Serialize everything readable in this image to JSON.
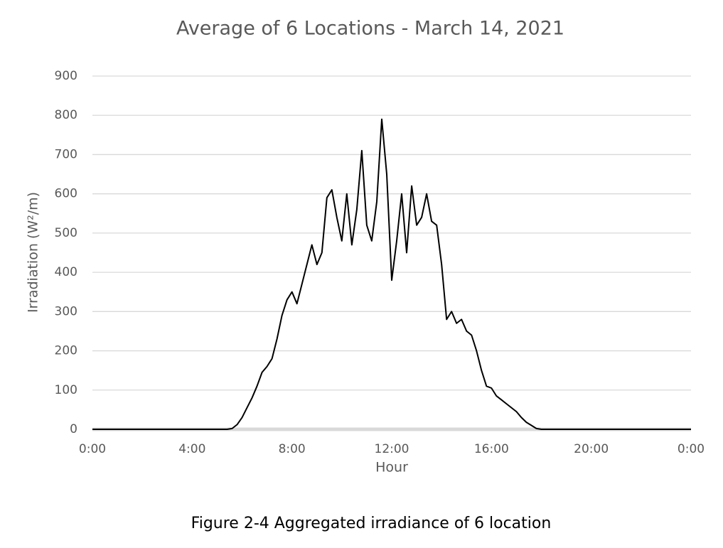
{
  "chart_data": {
    "type": "line",
    "title": "Average of 6 Locations - March 14, 2021",
    "x_label": "Hour",
    "y_label": "Irradiation (W²/m)",
    "caption": "Figure 2-4 Aggregated irradiance of 6 location",
    "x": [
      0,
      5.4,
      5.6,
      5.8,
      6.0,
      6.2,
      6.4,
      6.6,
      6.8,
      7.0,
      7.2,
      7.4,
      7.6,
      7.8,
      8.0,
      8.2,
      8.4,
      8.6,
      8.8,
      9.0,
      9.2,
      9.4,
      9.6,
      9.8,
      10.0,
      10.2,
      10.4,
      10.6,
      10.8,
      11.0,
      11.2,
      11.4,
      11.6,
      11.8,
      12.0,
      12.2,
      12.4,
      12.6,
      12.8,
      13.0,
      13.2,
      13.4,
      13.6,
      13.8,
      14.0,
      14.2,
      14.4,
      14.6,
      14.8,
      15.0,
      15.2,
      15.4,
      15.6,
      15.8,
      16.0,
      16.2,
      16.4,
      16.6,
      16.8,
      17.0,
      17.2,
      17.4,
      17.6,
      17.8,
      18.0,
      24
    ],
    "series": [
      {
        "name": "Irradiation",
        "color": "#000000",
        "values": [
          0,
          0,
          2,
          12,
          30,
          55,
          80,
          110,
          145,
          160,
          180,
          230,
          290,
          330,
          350,
          320,
          370,
          420,
          470,
          420,
          450,
          590,
          610,
          540,
          480,
          600,
          470,
          560,
          710,
          520,
          480,
          580,
          790,
          650,
          380,
          480,
          600,
          450,
          620,
          520,
          540,
          600,
          530,
          520,
          420,
          280,
          300,
          270,
          280,
          250,
          240,
          200,
          150,
          110,
          105,
          85,
          75,
          65,
          55,
          45,
          30,
          18,
          10,
          2,
          0,
          0
        ]
      }
    ],
    "xlim": [
      0,
      24
    ],
    "xticks": [
      {
        "value": 0,
        "label": "0:00"
      },
      {
        "value": 4,
        "label": "4:00"
      },
      {
        "value": 8,
        "label": "8:00"
      },
      {
        "value": 12,
        "label": "12:00"
      },
      {
        "value": 16,
        "label": "16:00"
      },
      {
        "value": 20,
        "label": "20:00"
      },
      {
        "value": 24,
        "label": "0:00"
      }
    ],
    "ylim": [
      0,
      900
    ],
    "yticks": [
      0,
      100,
      200,
      300,
      400,
      500,
      600,
      700,
      800,
      900
    ],
    "grid": true
  }
}
